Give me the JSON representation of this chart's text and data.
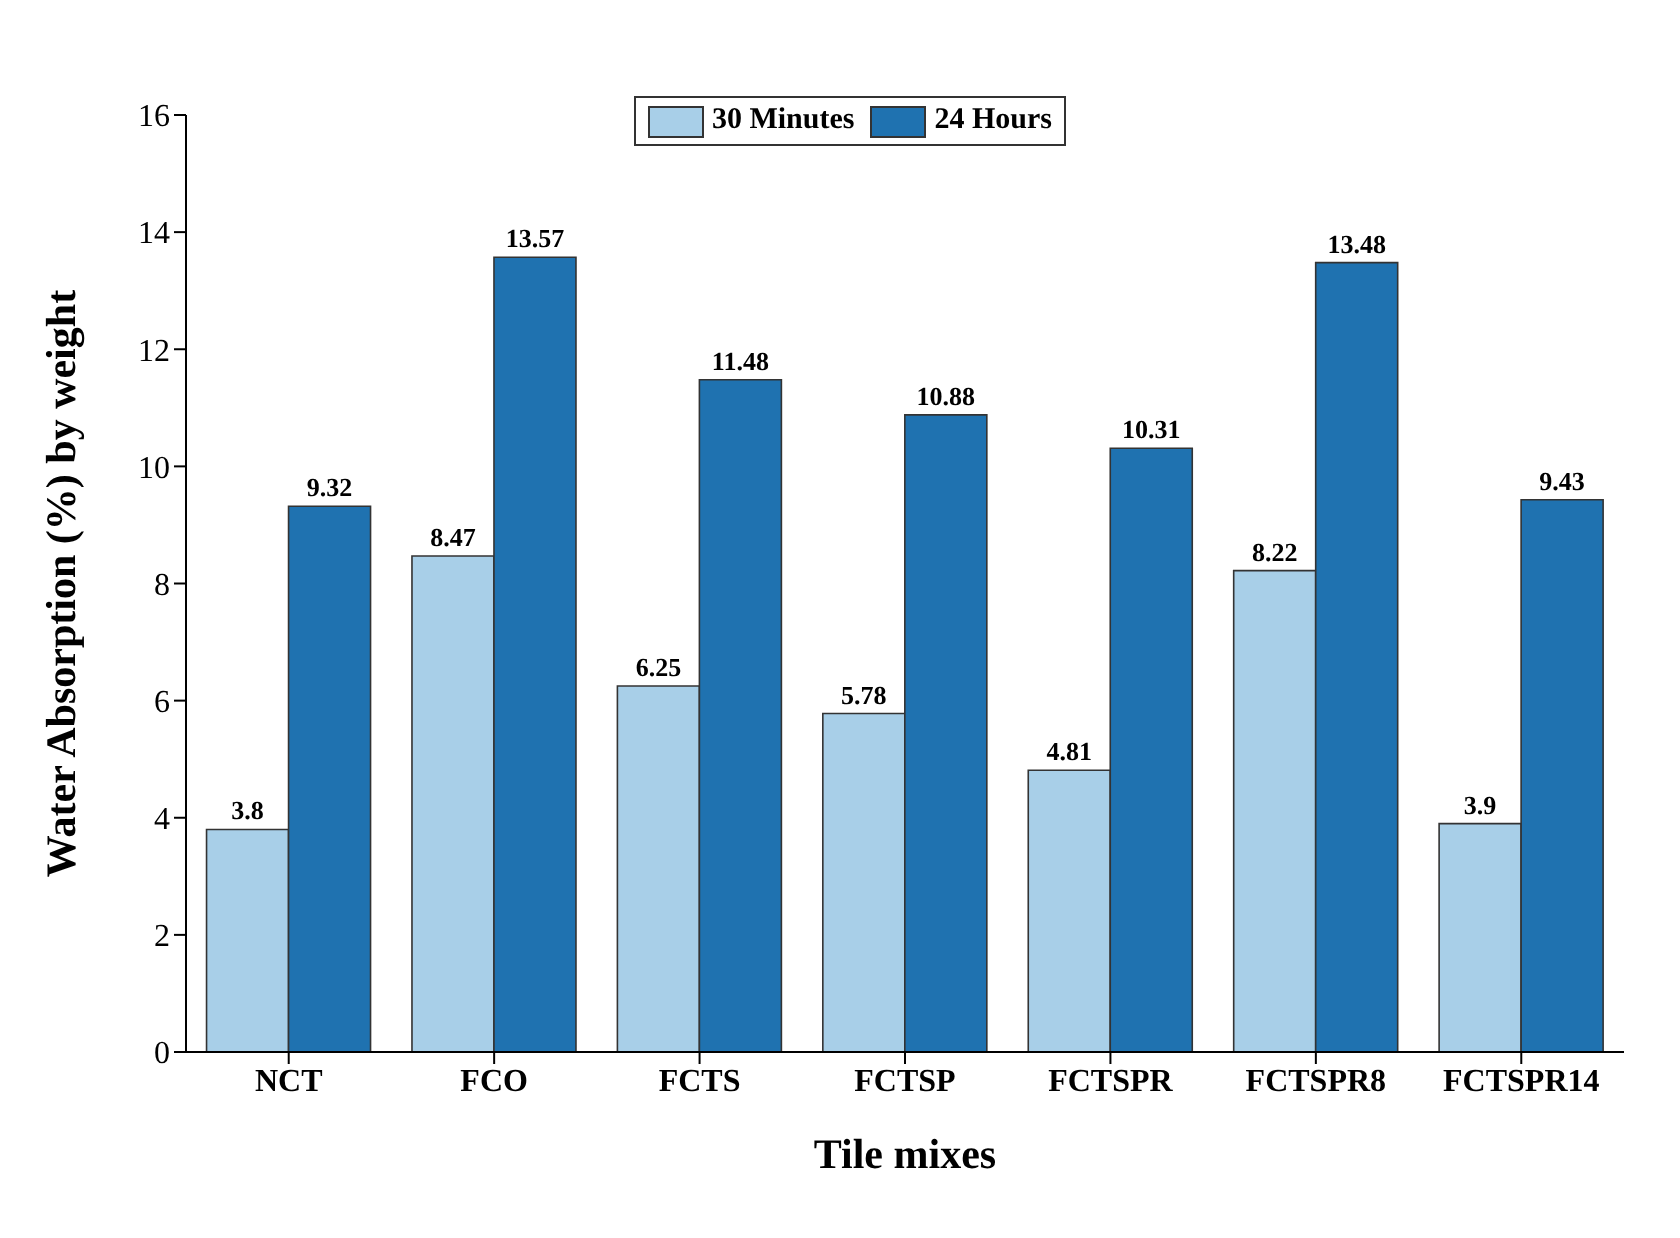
{
  "chart_data": {
    "type": "bar",
    "xlabel": "Tile mixes",
    "ylabel": "Water Absorption (%) by weight",
    "categories": [
      "NCT",
      "FCO",
      "FCTS",
      "FCTSP",
      "FCTSPR",
      "FCTSPR8",
      "FCTSPR14"
    ],
    "series": [
      {
        "name": "30 Minutes",
        "color": "#a8cfe8",
        "values": [
          3.8,
          8.47,
          6.25,
          5.78,
          4.81,
          8.22,
          3.9
        ]
      },
      {
        "name": "24 Hours",
        "color": "#1f72b0",
        "values": [
          9.32,
          13.57,
          11.48,
          10.88,
          10.31,
          13.48,
          9.43
        ]
      }
    ],
    "ylim": [
      0,
      16
    ],
    "yticks": [
      0,
      2,
      4,
      6,
      8,
      10,
      12,
      14,
      16
    ],
    "data_labels": true,
    "legend": "top",
    "grid": false
  }
}
